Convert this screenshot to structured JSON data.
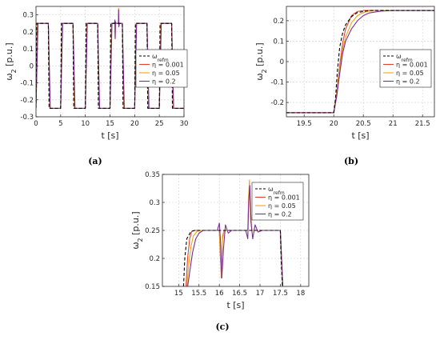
{
  "colors": {
    "ref": "#000000",
    "eta_0.001": "#e0452a",
    "eta_0.05": "#eda51a",
    "eta_0.2": "#7a2e8e"
  },
  "chart_data": [
    {
      "type": "line",
      "caption": "(a)",
      "xlabel": "t [s]",
      "ylabel_main": "ω",
      "ylabel_sub": "2",
      "ylabel_unit": " [p.u.]",
      "xlim": [
        0,
        30
      ],
      "ylim": [
        -0.3,
        0.35
      ],
      "xticks": [
        "0",
        "5",
        "10",
        "15",
        "20",
        "25",
        "30"
      ],
      "yticks": [
        "-0.3",
        "-0.2",
        "-0.1",
        "0",
        "0.1",
        "0.2",
        "0.3"
      ],
      "legend_position": "right",
      "grid": true,
      "series": [
        {
          "name": "ω_refm",
          "style": "dashed",
          "x": [
            0,
            0.15,
            2.5,
            2.65,
            5,
            5.15,
            7.5,
            7.65,
            10,
            10.15,
            12.5,
            12.65,
            15,
            15.15,
            17.5,
            17.65,
            20,
            20.15,
            22.5,
            22.65,
            25,
            25.15,
            27.5,
            27.65,
            30
          ],
          "y": [
            -0.25,
            0.25,
            0.25,
            -0.25,
            -0.25,
            0.25,
            0.25,
            -0.25,
            -0.25,
            0.25,
            0.25,
            -0.25,
            -0.25,
            0.25,
            0.25,
            -0.25,
            -0.25,
            0.25,
            0.25,
            -0.25,
            -0.25,
            0.25,
            0.25,
            -0.25,
            -0.25
          ]
        },
        {
          "name": "η = 0.001",
          "x": [
            0,
            0.3,
            2.5,
            2.8,
            5,
            5.3,
            7.5,
            7.8,
            10,
            10.3,
            12.5,
            12.8,
            15,
            15.3,
            16.0,
            16.05,
            16.1,
            16.7,
            16.75,
            16.8,
            17.5,
            17.8,
            20,
            20.3,
            22.5,
            22.8,
            25,
            25.3,
            27.5,
            27.8,
            30
          ],
          "y": [
            -0.25,
            0.25,
            0.25,
            -0.25,
            -0.25,
            0.25,
            0.25,
            -0.25,
            -0.25,
            0.25,
            0.25,
            -0.25,
            -0.25,
            0.25,
            0.25,
            0.16,
            0.25,
            0.25,
            0.33,
            0.25,
            0.25,
            -0.25,
            -0.25,
            0.25,
            0.25,
            -0.25,
            -0.25,
            0.25,
            0.25,
            -0.25,
            -0.25
          ]
        },
        {
          "name": "η = 0.05",
          "x": [
            0,
            0.35,
            2.5,
            2.85,
            5,
            5.35,
            7.5,
            7.85,
            10,
            10.35,
            12.5,
            12.85,
            15,
            15.35,
            16.0,
            16.05,
            16.1,
            16.7,
            16.75,
            16.8,
            17.5,
            17.85,
            20,
            20.35,
            22.5,
            22.85,
            25,
            25.35,
            27.5,
            27.85,
            30
          ],
          "y": [
            -0.25,
            0.25,
            0.25,
            -0.25,
            -0.25,
            0.25,
            0.25,
            -0.25,
            -0.25,
            0.25,
            0.25,
            -0.25,
            -0.25,
            0.25,
            0.25,
            0.17,
            0.25,
            0.25,
            0.34,
            0.25,
            0.25,
            -0.25,
            -0.25,
            0.25,
            0.25,
            -0.25,
            -0.25,
            0.25,
            0.25,
            -0.25,
            -0.25
          ]
        },
        {
          "name": "η = 0.2",
          "x": [
            0,
            0.4,
            2.5,
            2.9,
            5,
            5.4,
            7.5,
            7.9,
            10,
            10.4,
            12.5,
            12.9,
            15,
            15.4,
            15.9,
            16.0,
            16.05,
            16.1,
            16.2,
            16.7,
            16.75,
            16.8,
            16.9,
            17.5,
            17.9,
            20,
            20.4,
            22.5,
            22.9,
            25,
            25.4,
            27.5,
            27.9,
            30
          ],
          "y": [
            -0.25,
            0.25,
            0.25,
            -0.25,
            -0.25,
            0.25,
            0.25,
            -0.25,
            -0.25,
            0.25,
            0.25,
            -0.25,
            -0.25,
            0.25,
            0.25,
            0.27,
            0.16,
            0.26,
            0.25,
            0.25,
            0.33,
            0.23,
            0.25,
            0.25,
            -0.25,
            -0.25,
            0.25,
            0.25,
            -0.25,
            -0.25,
            0.25,
            0.25,
            -0.25,
            -0.25
          ]
        }
      ]
    },
    {
      "type": "line",
      "caption": "(b)",
      "xlabel": "t [s]",
      "ylabel_main": "ω",
      "ylabel_sub": "2",
      "ylabel_unit": " [p.u.]",
      "xlim": [
        19.2,
        21.7
      ],
      "ylim": [
        -0.27,
        0.27
      ],
      "xticks": [
        "19.5",
        "20",
        "20.5",
        "21",
        "21.5"
      ],
      "yticks": [
        "-0.2",
        "-0.1",
        "0",
        "0.1",
        "0.2"
      ],
      "legend_position": "lower right",
      "grid": true,
      "series": [
        {
          "name": "ω_refm",
          "style": "dashed",
          "x": [
            19.2,
            20.0,
            20.03,
            20.06,
            20.1,
            20.15,
            20.2,
            20.3,
            20.4,
            20.6,
            21.7
          ],
          "y": [
            -0.25,
            -0.25,
            -0.18,
            -0.05,
            0.07,
            0.14,
            0.18,
            0.22,
            0.24,
            0.25,
            0.25
          ]
        },
        {
          "name": "η = 0.001",
          "x": [
            19.2,
            20.0,
            20.05,
            20.1,
            20.15,
            20.2,
            20.3,
            20.4,
            20.5,
            20.6,
            20.8,
            21.7
          ],
          "y": [
            -0.25,
            -0.25,
            -0.15,
            -0.02,
            0.09,
            0.16,
            0.225,
            0.245,
            0.25,
            0.25,
            0.25,
            0.25
          ]
        },
        {
          "name": "η = 0.05",
          "x": [
            19.2,
            20.0,
            20.05,
            20.1,
            20.15,
            20.2,
            20.3,
            20.4,
            20.5,
            20.6,
            20.8,
            21.7
          ],
          "y": [
            -0.25,
            -0.25,
            -0.16,
            -0.04,
            0.06,
            0.12,
            0.19,
            0.225,
            0.24,
            0.247,
            0.25,
            0.25
          ]
        },
        {
          "name": "η = 0.2",
          "x": [
            19.2,
            20.0,
            20.05,
            20.1,
            20.15,
            20.2,
            20.3,
            20.4,
            20.5,
            20.6,
            20.8,
            21.0,
            21.7
          ],
          "y": [
            -0.25,
            -0.25,
            -0.17,
            -0.06,
            0.04,
            0.1,
            0.16,
            0.2,
            0.225,
            0.238,
            0.247,
            0.25,
            0.25
          ]
        }
      ]
    },
    {
      "type": "line",
      "caption": "(c)",
      "xlabel": "t [s]",
      "ylabel_main": "ω",
      "ylabel_sub": "2",
      "ylabel_unit": " [p.u.]",
      "xlim": [
        14.6,
        18.2
      ],
      "ylim": [
        0.15,
        0.35
      ],
      "xticks": [
        "15",
        "15.5",
        "16",
        "16.5",
        "17",
        "17.5",
        "18"
      ],
      "yticks": [
        "0.15",
        "0.2",
        "0.25",
        "0.3",
        "0.35"
      ],
      "legend_position": "top right",
      "grid": true,
      "series": [
        {
          "name": "ω_refm",
          "style": "dashed",
          "x": [
            15.12,
            15.15,
            15.2,
            15.3,
            15.4,
            17.5,
            17.52,
            17.55
          ],
          "y": [
            0.15,
            0.2,
            0.235,
            0.248,
            0.25,
            0.25,
            0.2,
            0.15
          ]
        },
        {
          "name": "η = 0.001",
          "x": [
            15.18,
            15.22,
            15.27,
            15.32,
            15.38,
            15.45,
            15.55,
            16.0,
            16.02,
            16.05,
            16.08,
            16.12,
            16.2,
            16.7,
            16.72,
            16.74,
            16.77,
            16.8,
            16.85,
            16.95,
            17.5,
            17.53,
            17.56
          ],
          "y": [
            0.15,
            0.2,
            0.235,
            0.248,
            0.25,
            0.25,
            0.25,
            0.25,
            0.21,
            0.165,
            0.24,
            0.25,
            0.25,
            0.25,
            0.3,
            0.33,
            0.27,
            0.25,
            0.25,
            0.25,
            0.25,
            0.2,
            0.15
          ]
        },
        {
          "name": "η = 0.05",
          "x": [
            15.2,
            15.25,
            15.3,
            15.36,
            15.45,
            15.55,
            16.0,
            16.02,
            16.05,
            16.08,
            16.12,
            16.2,
            16.7,
            16.72,
            16.74,
            16.77,
            16.8,
            16.85,
            16.95,
            17.5,
            17.53,
            17.56
          ],
          "y": [
            0.15,
            0.19,
            0.22,
            0.24,
            0.248,
            0.25,
            0.25,
            0.215,
            0.17,
            0.235,
            0.25,
            0.25,
            0.25,
            0.31,
            0.34,
            0.28,
            0.25,
            0.25,
            0.25,
            0.25,
            0.2,
            0.15
          ]
        },
        {
          "name": "η = 0.2",
          "x": [
            15.22,
            15.28,
            15.34,
            15.42,
            15.5,
            15.6,
            15.95,
            16.0,
            16.03,
            16.06,
            16.1,
            16.15,
            16.22,
            16.3,
            16.65,
            16.7,
            16.72,
            16.75,
            16.78,
            16.82,
            16.88,
            16.95,
            17.05,
            17.5,
            17.53,
            17.56
          ],
          "y": [
            0.15,
            0.18,
            0.21,
            0.235,
            0.245,
            0.25,
            0.25,
            0.263,
            0.23,
            0.165,
            0.215,
            0.26,
            0.245,
            0.25,
            0.25,
            0.235,
            0.3,
            0.33,
            0.265,
            0.235,
            0.26,
            0.247,
            0.25,
            0.25,
            0.2,
            0.15
          ]
        }
      ]
    }
  ]
}
